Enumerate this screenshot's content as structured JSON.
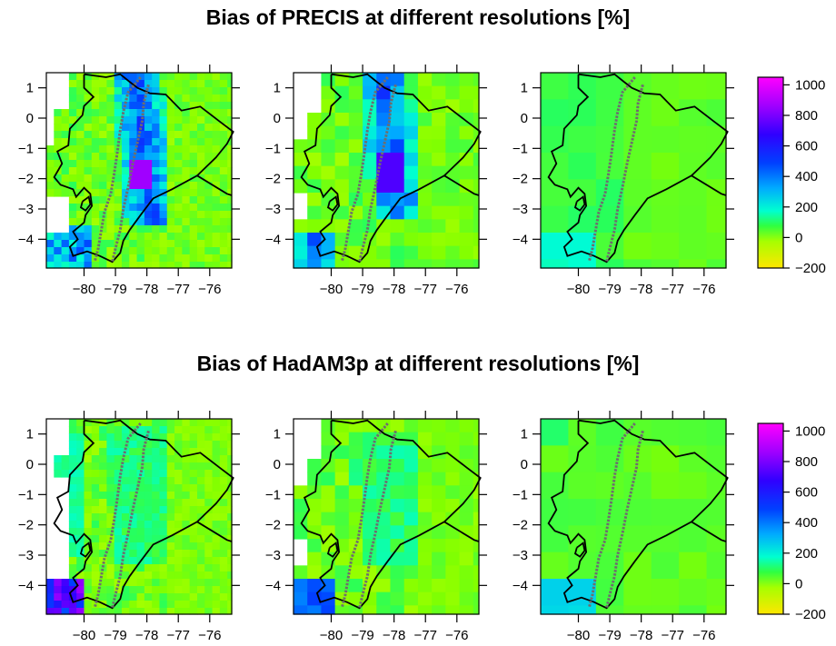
{
  "titles": {
    "top": "Bias of PRECIS at different resolutions [%]",
    "bottom": "Bias of HadAM3p at different resolutions [%]"
  },
  "axes": {
    "x_ticks": [
      -80,
      -79,
      -78,
      -77,
      -76
    ],
    "x_tick_labels": [
      "−80",
      "−79",
      "−78",
      "−77",
      "−76"
    ],
    "y_ticks": [
      1,
      0,
      -1,
      -2,
      -3,
      -4
    ],
    "y_tick_labels": [
      "1",
      "0",
      "−1",
      "−2",
      "−3",
      "−4"
    ],
    "lon_range": [
      -81.2,
      -75.3
    ],
    "lat_range": [
      -4.95,
      1.5
    ]
  },
  "colorbar": {
    "ticks": [
      1000,
      800,
      600,
      400,
      200,
      0,
      -200
    ],
    "tick_labels": [
      "1000",
      "800",
      "600",
      "400",
      "200",
      "0",
      "−200"
    ],
    "range": [
      -200,
      1050
    ]
  },
  "colors": {
    "coastline": "#000000",
    "andes_contour": "#6e6e6e",
    "background": "#ffffff"
  }
}
